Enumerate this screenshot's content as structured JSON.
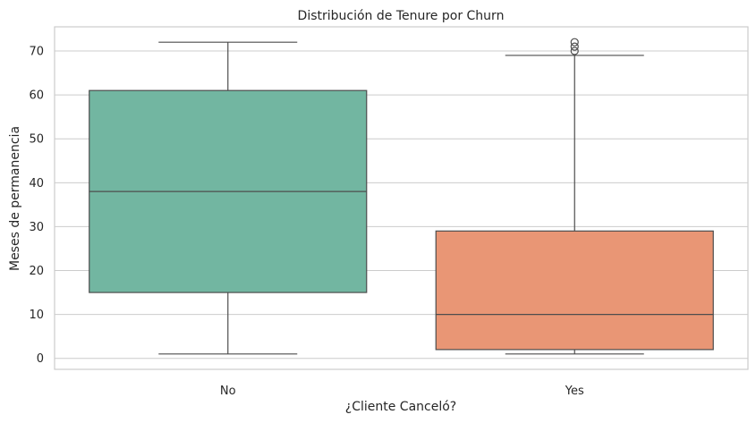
{
  "chart_data": {
    "type": "box",
    "title": "Distribución de Tenure por Churn",
    "xlabel": "¿Cliente Canceló?",
    "ylabel": "Meses de permanencia",
    "categories": [
      "No",
      "Yes"
    ],
    "ylim": [
      -2.5,
      75.5
    ],
    "yticks": [
      0,
      10,
      20,
      30,
      40,
      50,
      60,
      70
    ],
    "grid": true,
    "boxes": [
      {
        "category": "No",
        "whisker_low": 1,
        "q1": 15,
        "median": 38,
        "q3": 61,
        "whisker_high": 72,
        "outliers": [],
        "color": "#72b6a1"
      },
      {
        "category": "Yes",
        "whisker_low": 1,
        "q1": 2,
        "median": 10,
        "q3": 29,
        "whisker_high": 69,
        "outliers": [
          70,
          71,
          72
        ],
        "color": "#e99675"
      }
    ]
  }
}
